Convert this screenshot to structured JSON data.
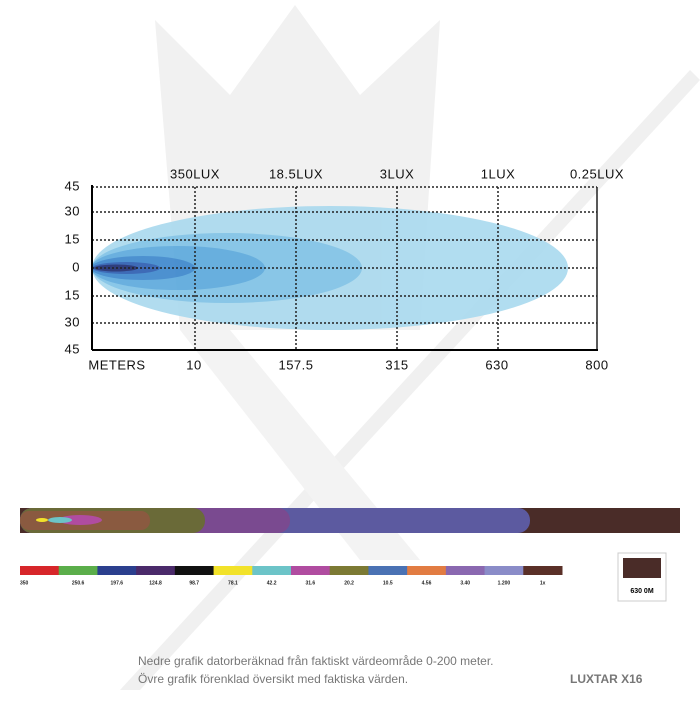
{
  "top_labels": [
    "350LUX",
    "18.5LUX",
    "3LUX",
    "1LUX",
    "0.25LUX"
  ],
  "y_labels": [
    "45",
    "30",
    "15",
    "0",
    "15",
    "30",
    "45"
  ],
  "x_labels": [
    "METERS",
    "10",
    "157.5",
    "315",
    "630",
    "800"
  ],
  "scale": {
    "labels": [
      "350",
      "250.6",
      "197.6",
      "124.8",
      "98.7",
      "78.1",
      "42.2",
      "31.6",
      "20.2",
      "10.5",
      "4.56",
      "3.40",
      "1.200",
      "1x"
    ],
    "colors": [
      "#d7262a",
      "#5bae4a",
      "#2b3f8e",
      "#4a2a6a",
      "#111111",
      "#f2e22a",
      "#6cc4c8",
      "#b04ca0",
      "#7c7a34",
      "#4a72b4",
      "#e27c42",
      "#8a68b0",
      "#8a8cc8",
      "#5a3028"
    ]
  },
  "box": {
    "label": "630 0M"
  },
  "notes": [
    "Nedre grafik datorberäknad från faktiskt värdeområde 0-200 meter.",
    "Övre grafik förenklad översikt med faktiska värden."
  ],
  "brand": "LUXTAR X16"
}
